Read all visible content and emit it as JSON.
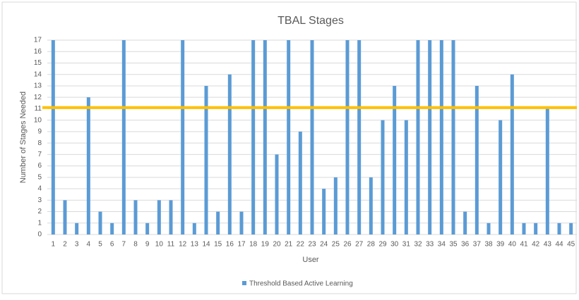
{
  "chart_data": {
    "type": "bar",
    "title": "TBAL Stages",
    "x_label": "User",
    "y_label": "Number of Stages Needed",
    "categories": [
      "1",
      "2",
      "3",
      "4",
      "5",
      "6",
      "7",
      "8",
      "9",
      "10",
      "11",
      "12",
      "13",
      "14",
      "15",
      "16",
      "17",
      "18",
      "19",
      "20",
      "21",
      "22",
      "23",
      "24",
      "25",
      "26",
      "27",
      "28",
      "29",
      "30",
      "31",
      "32",
      "33",
      "34",
      "35",
      "36",
      "37",
      "38",
      "39",
      "40",
      "41",
      "42",
      "43",
      "44",
      "45"
    ],
    "series": [
      {
        "name": "Threshold Based Active Learning",
        "color": "#5b9bd5",
        "values": [
          17,
          3,
          1,
          12,
          2,
          1,
          17,
          3,
          1,
          3,
          3,
          17,
          1,
          13,
          2,
          14,
          2,
          17,
          17,
          7,
          17,
          9,
          17,
          4,
          5,
          17,
          17,
          5,
          10,
          13,
          10,
          17,
          17,
          17,
          17,
          2,
          13,
          1,
          10,
          14,
          1,
          1,
          11,
          1,
          1
        ]
      }
    ],
    "reference_line": {
      "value": 11.1,
      "color": "#ffc000"
    },
    "ylim": [
      0,
      17
    ],
    "yticks": [
      0,
      1,
      2,
      3,
      4,
      5,
      6,
      7,
      8,
      9,
      10,
      11,
      12,
      13,
      14,
      15,
      16,
      17
    ],
    "grid": true,
    "legend": "bottom"
  }
}
